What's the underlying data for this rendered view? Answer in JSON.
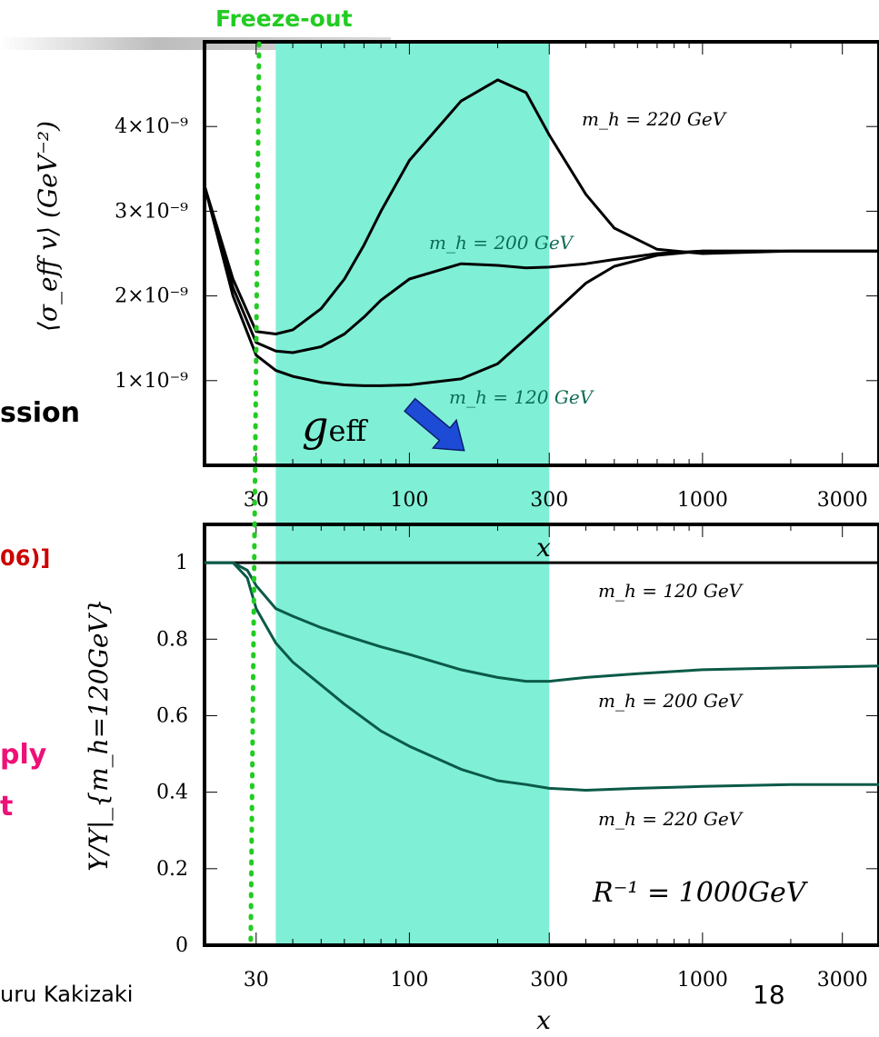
{
  "slide": {
    "freeze_out_label": "Freeze-out",
    "frag_session": "ssion",
    "frag_ref": "06)]",
    "frag_ply": "ply",
    "frag_t": "t",
    "footer_author_fragment": "uru Kakizaki",
    "page_number": "18",
    "geff_label": "g",
    "geff_subscript": "eff",
    "colors": {
      "freeze_line": "#22cc22",
      "band": "#7ff0d6",
      "band_text": "#0d6b55",
      "red": "#cc0000",
      "magenta": "#ee1177",
      "arrow": "#1d4bd6"
    }
  },
  "chart_data": [
    {
      "type": "line",
      "xscale": "log",
      "xlim": [
        20,
        4000
      ],
      "ylim": [
        0,
        5e-09
      ],
      "xticklabels": [
        "30",
        "100",
        "300",
        "1000",
        "3000"
      ],
      "xtickvalues": [
        30,
        100,
        300,
        1000,
        3000
      ],
      "yticklabels": [
        "1×10⁻⁹",
        "2×10⁻⁹",
        "3×10⁻⁹",
        "4×10⁻⁹"
      ],
      "ytickvalues": [
        1e-09,
        2e-09,
        3e-09,
        4e-09
      ],
      "ylabel": "⟨σ_eff v⟩ (GeV⁻²)",
      "xlabel": "x",
      "series": [
        {
          "name": "m_h = 120 GeV",
          "x": [
            20,
            25,
            30,
            35,
            40,
            50,
            60,
            70,
            80,
            100,
            150,
            200,
            250,
            300,
            400,
            500,
            700,
            1000,
            2000,
            4000
          ],
          "y": [
            3.3e-09,
            2e-09,
            1.3e-09,
            1.12e-09,
            1.05e-09,
            9.8e-10,
            9.5e-10,
            9.4e-10,
            9.4e-10,
            9.5e-10,
            1.02e-09,
            1.2e-09,
            1.5e-09,
            1.75e-09,
            2.15e-09,
            2.35e-09,
            2.48e-09,
            2.53e-09,
            2.53e-09,
            2.53e-09
          ]
        },
        {
          "name": "m_h = 200 GeV",
          "x": [
            20,
            25,
            30,
            35,
            40,
            50,
            60,
            70,
            80,
            100,
            150,
            200,
            250,
            300,
            400,
            500,
            700,
            1000,
            2000,
            4000
          ],
          "y": [
            3.3e-09,
            2.1e-09,
            1.45e-09,
            1.35e-09,
            1.33e-09,
            1.4e-09,
            1.55e-09,
            1.75e-09,
            1.95e-09,
            2.2e-09,
            2.38e-09,
            2.36e-09,
            2.33e-09,
            2.34e-09,
            2.38e-09,
            2.43e-09,
            2.5e-09,
            2.53e-09,
            2.53e-09,
            2.53e-09
          ]
        },
        {
          "name": "m_h = 220 GeV",
          "x": [
            20,
            25,
            30,
            35,
            40,
            50,
            60,
            70,
            80,
            100,
            150,
            200,
            250,
            300,
            400,
            500,
            700,
            1000,
            2000,
            4000
          ],
          "y": [
            3.3e-09,
            2.2e-09,
            1.58e-09,
            1.55e-09,
            1.6e-09,
            1.85e-09,
            2.2e-09,
            2.6e-09,
            3e-09,
            3.6e-09,
            4.3e-09,
            4.55e-09,
            4.4e-09,
            3.9e-09,
            3.2e-09,
            2.8e-09,
            2.55e-09,
            2.5e-09,
            2.53e-09,
            2.53e-09
          ]
        }
      ],
      "annotations": [
        "m_h = 220 GeV",
        "m_h = 200 GeV",
        "m_h = 120 GeV"
      ],
      "shaded_band_x": [
        35,
        300
      ],
      "freeze_out_x": 30
    },
    {
      "type": "line",
      "xscale": "log",
      "xlim": [
        20,
        4000
      ],
      "ylim": [
        0,
        1.1
      ],
      "xticklabels": [
        "30",
        "100",
        "300",
        "1000",
        "3000"
      ],
      "xtickvalues": [
        30,
        100,
        300,
        1000,
        3000
      ],
      "yticklabels": [
        "0",
        "0.2",
        "0.4",
        "0.6",
        "0.8",
        "1"
      ],
      "ytickvalues": [
        0,
        0.2,
        0.4,
        0.6,
        0.8,
        1
      ],
      "ylabel": "Y/Y|_{m_h=120GeV}",
      "xlabel": "x",
      "series": [
        {
          "name": "m_h = 120 GeV",
          "x": [
            20,
            4000
          ],
          "y": [
            1.0,
            1.0
          ]
        },
        {
          "name": "m_h = 200 GeV",
          "x": [
            20,
            25,
            28,
            30,
            35,
            40,
            50,
            60,
            80,
            100,
            150,
            200,
            250,
            300,
            400,
            600,
            1000,
            2000,
            4000
          ],
          "y": [
            1.0,
            1.0,
            0.98,
            0.94,
            0.88,
            0.86,
            0.83,
            0.81,
            0.78,
            0.76,
            0.72,
            0.7,
            0.69,
            0.69,
            0.7,
            0.71,
            0.72,
            0.725,
            0.73
          ]
        },
        {
          "name": "m_h = 220 GeV",
          "x": [
            20,
            25,
            28,
            30,
            35,
            40,
            50,
            60,
            80,
            100,
            150,
            200,
            250,
            300,
            400,
            600,
            1000,
            2000,
            4000
          ],
          "y": [
            1.0,
            1.0,
            0.96,
            0.88,
            0.79,
            0.74,
            0.68,
            0.63,
            0.56,
            0.52,
            0.46,
            0.43,
            0.42,
            0.41,
            0.405,
            0.41,
            0.415,
            0.42,
            0.42
          ]
        }
      ],
      "annotations": [
        "m_h = 120 GeV",
        "m_h = 200 GeV",
        "m_h = 220 GeV",
        "R⁻¹ = 1000GeV"
      ]
    }
  ]
}
